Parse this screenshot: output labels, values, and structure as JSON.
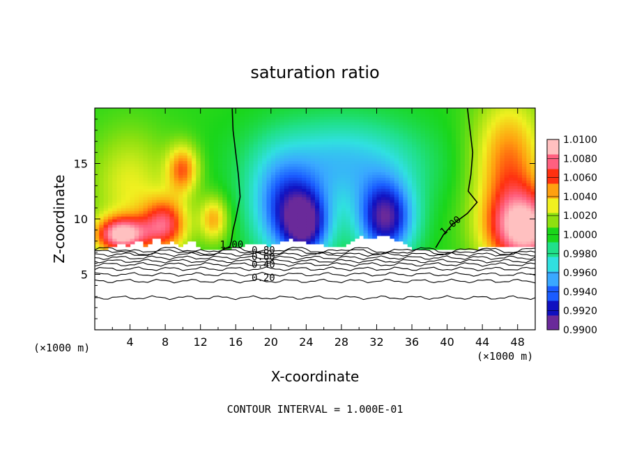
{
  "chart_data": {
    "type": "heatmap",
    "title": "saturation ratio",
    "xlabel": "X-coordinate",
    "ylabel": "Z-coordinate",
    "x_unit_left": "(×1000 m)",
    "x_unit_right": "(×1000 m)",
    "footer": "CONTOUR INTERVAL = 1.000E-01",
    "xlim": [
      0,
      50
    ],
    "ylim": [
      0,
      20
    ],
    "x_ticks": [
      4,
      8,
      12,
      16,
      20,
      24,
      28,
      32,
      36,
      40,
      44,
      48
    ],
    "y_ticks": [
      5,
      10,
      15
    ],
    "colorbar": {
      "min": 0.99,
      "max": 1.01,
      "labels": [
        "1.0100",
        "1.0080",
        "1.0060",
        "1.0040",
        "1.0020",
        "1.0000",
        "0.9980",
        "0.9960",
        "0.9940",
        "0.9920",
        "0.9900"
      ]
    },
    "colors": {
      "ramp": [
        "#6a2a9a",
        "#1010c0",
        "#1a5cff",
        "#3aa8ff",
        "#30e0e0",
        "#20e08a",
        "#1ad61a",
        "#8fe010",
        "#f0f020",
        "#ffa010",
        "#ff3010",
        "#ff6080",
        "#ffc0c0"
      ],
      "contour_line": "#000000",
      "background": "#ffffff"
    },
    "contour_labels": [
      {
        "text": "1.00",
        "x": 14.2,
        "z": 7.4
      },
      {
        "text": "1.00",
        "x": 39.6,
        "z": 8.5
      },
      {
        "text": "0.80",
        "x": 17.8,
        "z": 6.9
      },
      {
        "text": "0.60",
        "x": 17.8,
        "z": 6.3
      },
      {
        "text": "0.40",
        "x": 17.8,
        "z": 5.6
      },
      {
        "text": "0.20",
        "x": 17.8,
        "z": 4.4
      }
    ],
    "contour_lines_below": [
      {
        "value": 1.0,
        "z": 7.2
      },
      {
        "value": 0.9,
        "z": 7.0
      },
      {
        "value": 0.8,
        "z": 6.8
      },
      {
        "value": 0.7,
        "z": 6.5
      },
      {
        "value": 0.6,
        "z": 6.2
      },
      {
        "value": 0.5,
        "z": 5.9
      },
      {
        "value": 0.4,
        "z": 5.5
      },
      {
        "value": 0.3,
        "z": 5.0
      },
      {
        "value": 0.2,
        "z": 4.4
      },
      {
        "value": 0.1,
        "z": 2.9
      }
    ],
    "surface_height_profile": [
      [
        0,
        7.3
      ],
      [
        2,
        7.4
      ],
      [
        3,
        8.0
      ],
      [
        4,
        7.5
      ],
      [
        5,
        8.2
      ],
      [
        6,
        7.4
      ],
      [
        7,
        8.5
      ],
      [
        8,
        7.6
      ],
      [
        9,
        8.0
      ],
      [
        10,
        7.5
      ],
      [
        11,
        8.3
      ],
      [
        12,
        7.3
      ],
      [
        13,
        7.4
      ],
      [
        14,
        7.3
      ],
      [
        16,
        7.4
      ],
      [
        18,
        7.8
      ],
      [
        20,
        7.6
      ],
      [
        22,
        8.2
      ],
      [
        24,
        7.9
      ],
      [
        26,
        7.6
      ],
      [
        28,
        7.4
      ],
      [
        29,
        8.0
      ],
      [
        30,
        8.5
      ],
      [
        31,
        8.2
      ],
      [
        32,
        8.4
      ],
      [
        33,
        8.6
      ],
      [
        34,
        8.2
      ],
      [
        35,
        7.8
      ],
      [
        36,
        7.4
      ],
      [
        38,
        7.2
      ],
      [
        40,
        7.2
      ],
      [
        42,
        7.3
      ],
      [
        44,
        7.4
      ],
      [
        46,
        7.5
      ],
      [
        48,
        7.5
      ],
      [
        50,
        7.6
      ]
    ],
    "contour_1_00_left": [
      [
        15.6,
        20
      ],
      [
        15.7,
        18
      ],
      [
        16.0,
        16
      ],
      [
        16.3,
        14
      ],
      [
        16.5,
        12
      ],
      [
        16.0,
        10
      ],
      [
        15.7,
        9
      ],
      [
        15.5,
        8
      ],
      [
        15.3,
        7.4
      ],
      [
        14.5,
        7.3
      ]
    ],
    "contour_1_00_right": [
      [
        42.3,
        20
      ],
      [
        42.6,
        18
      ],
      [
        42.9,
        16
      ],
      [
        42.7,
        14
      ],
      [
        42.4,
        12.5
      ],
      [
        43.4,
        11.5
      ],
      [
        42.3,
        10.5
      ],
      [
        40.6,
        9.5
      ],
      [
        39.6,
        8.6
      ],
      [
        38.7,
        7.4
      ]
    ]
  }
}
